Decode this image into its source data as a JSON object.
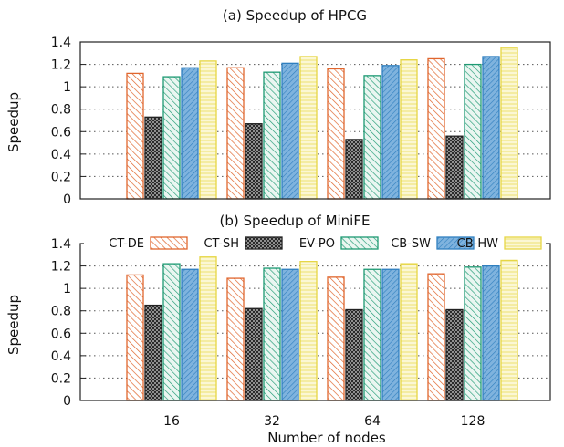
{
  "chart_data": [
    {
      "type": "bar",
      "title": "(a) Speedup of HPCG",
      "ylabel": "Speedup",
      "xlabel": "",
      "ylim": [
        0,
        1.4
      ],
      "yticks": [
        "0",
        "0.2",
        "0.4",
        "0.6",
        "0.8",
        "1",
        "1.2",
        "1.4"
      ],
      "grid": "horizontal dotted",
      "categories": [
        "16",
        "32",
        "64",
        "128"
      ],
      "series": [
        {
          "name": "CT-SH",
          "values": [
            1.12,
            1.17,
            1.16,
            1.25
          ]
        },
        {
          "name": "EV-PO",
          "values": [
            0.73,
            0.67,
            0.53,
            0.56
          ]
        },
        {
          "name": "CB-SW",
          "values": [
            1.09,
            1.13,
            1.1,
            1.2
          ]
        },
        {
          "name": "CB-HW",
          "values": [
            1.17,
            1.21,
            1.19,
            1.27
          ]
        },
        {
          "name": "",
          "values": [
            1.23,
            1.27,
            1.24,
            1.35
          ]
        }
      ]
    },
    {
      "type": "bar",
      "title": "(b) Speedup of MiniFE",
      "ylabel": "Speedup",
      "xlabel": "Number of nodes",
      "ylim": [
        0,
        1.4
      ],
      "yticks": [
        "0",
        "0.2",
        "0.4",
        "0.6",
        "0.8",
        "1",
        "1.2",
        "1.4"
      ],
      "grid": "horizontal dotted",
      "categories": [
        "16",
        "32",
        "64",
        "128"
      ],
      "series": [
        {
          "name": "CT-SH",
          "values": [
            1.12,
            1.09,
            1.1,
            1.13
          ]
        },
        {
          "name": "EV-PO",
          "values": [
            0.85,
            0.82,
            0.81,
            0.81
          ]
        },
        {
          "name": "CB-SW",
          "values": [
            1.22,
            1.18,
            1.17,
            1.19
          ]
        },
        {
          "name": "CB-HW",
          "values": [
            1.17,
            1.17,
            1.17,
            1.2
          ]
        },
        {
          "name": "",
          "values": [
            1.28,
            1.24,
            1.22,
            1.25
          ]
        }
      ]
    }
  ],
  "legend": {
    "placement": "top, between panels",
    "entries": [
      "CT-DE",
      "CT-SH",
      "EV-PO",
      "CB-SW",
      "CB-HW"
    ]
  },
  "colors": {
    "orange": "#e0662e",
    "black": "#222222",
    "teal": "#1e9a73",
    "blue": "#2f7fbf",
    "yellow": "#e6d645"
  }
}
